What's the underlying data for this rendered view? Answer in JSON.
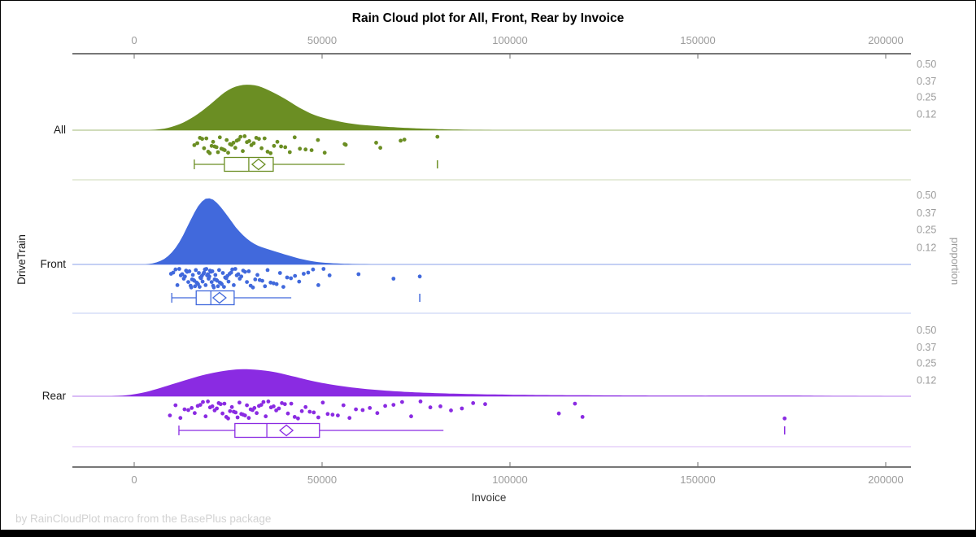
{
  "title": "Rain Cloud plot for All, Front, Rear by Invoice",
  "footer": "by RainCloudPlot macro from the BasePlus package",
  "x_axis": {
    "label": "Invoice",
    "tick_labels": [
      "0",
      "50000",
      "100000",
      "150000",
      "200000"
    ],
    "tick_values": [
      0,
      50000,
      100000,
      150000,
      200000
    ],
    "range": [
      0,
      200000
    ]
  },
  "y_axis_left": {
    "label": "DriveTrain",
    "categories": [
      "All",
      "Front",
      "Rear"
    ]
  },
  "y_axis_right": {
    "label": "proportion",
    "tick_labels": [
      "0.50",
      "0.37",
      "0.25",
      "0.12"
    ],
    "tick_values": [
      0.5,
      0.37,
      0.25,
      0.12
    ]
  },
  "chart_data": {
    "type": "raincloud",
    "title": "Rain Cloud plot for All, Front, Rear by Invoice",
    "xlabel": "Invoice",
    "x_range": [
      0,
      200000
    ],
    "legend": "none",
    "grid": false,
    "groups": [
      {
        "name": "All",
        "color": "#6B8E23",
        "density_profile": [
          [
            4000,
            0
          ],
          [
            8000,
            0.012
          ],
          [
            12000,
            0.045
          ],
          [
            16000,
            0.105
          ],
          [
            20000,
            0.19
          ],
          [
            24000,
            0.285
          ],
          [
            27000,
            0.33
          ],
          [
            30000,
            0.345
          ],
          [
            33000,
            0.335
          ],
          [
            36000,
            0.3
          ],
          [
            40000,
            0.24
          ],
          [
            44000,
            0.17
          ],
          [
            48000,
            0.115
          ],
          [
            52000,
            0.082
          ],
          [
            56000,
            0.058
          ],
          [
            60000,
            0.042
          ],
          [
            65000,
            0.03
          ],
          [
            70000,
            0.021
          ],
          [
            75000,
            0.014
          ],
          [
            80000,
            0.009
          ],
          [
            85000,
            0.005
          ],
          [
            90000,
            0.002
          ],
          [
            96000,
            0
          ]
        ],
        "points_thousands": [
          16.0,
          16.8,
          17.5,
          18.1,
          18.6,
          19.2,
          19.7,
          20.1,
          20.6,
          21.0,
          21.4,
          21.9,
          22.3,
          22.8,
          23.2,
          23.7,
          24.1,
          24.6,
          25.0,
          25.5,
          25.9,
          26.4,
          26.9,
          27.3,
          27.8,
          28.3,
          28.9,
          29.4,
          30.0,
          30.6,
          31.2,
          31.8,
          32.5,
          33.2,
          33.9,
          34.7,
          35.5,
          36.3,
          37.2,
          38.1,
          39.1,
          40.2,
          41.4,
          42.7,
          44.1,
          45.6,
          47.2,
          48.9,
          50.7,
          56.0,
          56.3,
          64.4,
          65.5,
          70.9,
          71.9,
          80.7
        ],
        "box": {
          "whisker_low": 16000,
          "q1": 24000,
          "median": 30500,
          "q3": 37000,
          "whisker_high": 56000,
          "mean": 33100,
          "far_outlier": 80700
        }
      },
      {
        "name": "Front",
        "color": "#4169DC",
        "density_profile": [
          [
            3000,
            0
          ],
          [
            6000,
            0.015
          ],
          [
            9000,
            0.06
          ],
          [
            12000,
            0.16
          ],
          [
            15000,
            0.32
          ],
          [
            17000,
            0.42
          ],
          [
            19000,
            0.475
          ],
          [
            21000,
            0.468
          ],
          [
            23000,
            0.415
          ],
          [
            25000,
            0.345
          ],
          [
            27000,
            0.27
          ],
          [
            29000,
            0.21
          ],
          [
            31000,
            0.165
          ],
          [
            33000,
            0.135
          ],
          [
            35000,
            0.115
          ],
          [
            38000,
            0.09
          ],
          [
            41000,
            0.065
          ],
          [
            44000,
            0.042
          ],
          [
            47000,
            0.025
          ],
          [
            50000,
            0.014
          ],
          [
            54000,
            0.007
          ],
          [
            58000,
            0.003
          ],
          [
            63000,
            0
          ]
        ],
        "points_thousands": [
          9.8,
          10.4,
          11.0,
          11.5,
          12.0,
          12.4,
          12.8,
          13.2,
          13.5,
          13.8,
          14.1,
          14.4,
          14.7,
          15.0,
          15.2,
          15.4,
          15.6,
          15.8,
          16.0,
          16.2,
          16.4,
          16.6,
          16.8,
          17.0,
          17.2,
          17.4,
          17.6,
          17.8,
          18.0,
          18.2,
          18.4,
          18.6,
          18.8,
          19.0,
          19.2,
          19.4,
          19.6,
          19.8,
          20.0,
          20.2,
          20.4,
          20.6,
          20.8,
          21.0,
          21.2,
          21.4,
          21.6,
          21.9,
          22.1,
          22.3,
          22.6,
          22.8,
          23.1,
          23.3,
          23.6,
          23.9,
          24.2,
          24.5,
          24.8,
          25.1,
          25.4,
          25.8,
          26.1,
          26.5,
          26.9,
          27.3,
          27.7,
          28.1,
          28.5,
          29.0,
          29.5,
          30.0,
          30.5,
          31.0,
          31.6,
          32.2,
          32.8,
          33.4,
          34.1,
          34.8,
          35.5,
          36.3,
          37.1,
          37.9,
          38.8,
          39.7,
          40.7,
          41.7,
          42.8,
          43.9,
          45.1,
          46.3,
          47.6,
          49.0,
          50.4,
          52.0,
          59.7,
          69.0,
          76.0
        ],
        "box": {
          "whisker_low": 10000,
          "q1": 16500,
          "median": 20400,
          "q3": 26600,
          "whisker_high": 41800,
          "mean": 22700,
          "far_outlier": 76000
        }
      },
      {
        "name": "Rear",
        "color": "#8A2BE2",
        "density_profile": [
          [
            -6000,
            0
          ],
          [
            -2000,
            0.008
          ],
          [
            2000,
            0.025
          ],
          [
            6000,
            0.055
          ],
          [
            10000,
            0.09
          ],
          [
            14000,
            0.125
          ],
          [
            18000,
            0.158
          ],
          [
            22000,
            0.183
          ],
          [
            26000,
            0.2
          ],
          [
            29000,
            0.205
          ],
          [
            33000,
            0.2
          ],
          [
            37000,
            0.185
          ],
          [
            41000,
            0.16
          ],
          [
            45000,
            0.132
          ],
          [
            49000,
            0.106
          ],
          [
            54000,
            0.082
          ],
          [
            59000,
            0.063
          ],
          [
            65000,
            0.047
          ],
          [
            71000,
            0.035
          ],
          [
            78000,
            0.026
          ],
          [
            86000,
            0.019
          ],
          [
            95000,
            0.014
          ],
          [
            105000,
            0.01
          ],
          [
            116000,
            0.008
          ],
          [
            128000,
            0.006
          ],
          [
            140000,
            0.005
          ],
          [
            152000,
            0.004
          ],
          [
            164000,
            0.005
          ],
          [
            172000,
            0.005
          ],
          [
            182000,
            0.003
          ],
          [
            192000,
            0.001
          ],
          [
            204000,
            0
          ]
        ],
        "points_thousands": [
          9.5,
          11.0,
          12.3,
          13.4,
          14.4,
          15.3,
          16.1,
          16.9,
          17.6,
          18.3,
          19.0,
          19.6,
          20.2,
          20.8,
          21.4,
          22.0,
          22.5,
          23.0,
          23.5,
          24.0,
          24.5,
          25.0,
          25.5,
          26.0,
          26.5,
          27.0,
          27.5,
          28.0,
          28.5,
          29.0,
          29.5,
          30.0,
          30.5,
          31.0,
          31.5,
          32.0,
          32.6,
          33.2,
          33.8,
          34.4,
          35.0,
          35.7,
          36.4,
          37.1,
          37.8,
          38.5,
          39.3,
          40.1,
          40.9,
          41.8,
          42.7,
          43.6,
          44.6,
          45.6,
          46.7,
          47.8,
          49.0,
          50.2,
          51.5,
          52.8,
          54.2,
          55.7,
          57.3,
          59.0,
          60.8,
          62.7,
          64.7,
          66.8,
          69.0,
          71.3,
          73.7,
          76.2,
          78.8,
          81.5,
          84.3,
          87.2,
          90.2,
          93.4,
          113.0,
          117.3,
          119.3,
          173.1
        ],
        "box": {
          "whisker_low": 11900,
          "q1": 26800,
          "median": 35300,
          "q3": 49300,
          "whisker_high": 82300,
          "mean": 40500,
          "far_outlier": 173100
        }
      }
    ],
    "proportion_ticks": [
      0.5,
      0.37,
      0.25,
      0.12
    ]
  },
  "jitter_pattern": [
    0.52,
    0.08,
    0.85,
    0.33,
    0.67,
    0.14,
    0.94,
    0.41,
    0.72,
    0.02,
    0.59,
    0.27,
    0.88,
    0.46,
    0.11,
    0.76,
    0.35,
    0.63,
    0.21,
    0.97,
    0.5,
    0.17,
    0.8,
    0.29,
    0.91,
    0.05,
    0.56,
    0.38,
    0.69,
    0.23
  ]
}
